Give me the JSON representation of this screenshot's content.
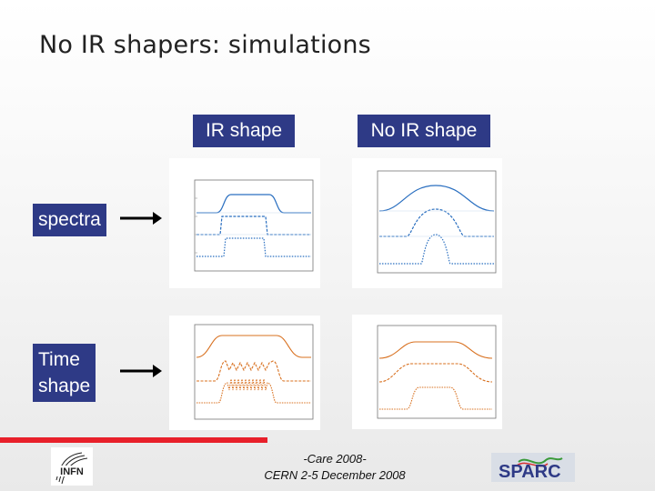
{
  "slide": {
    "title": "No IR shapers: simulations",
    "columns": [
      "IR shape",
      "No IR shape"
    ],
    "rows": [
      "spectra",
      "Time\nshape"
    ],
    "footer": {
      "line1": "-Care 2008-",
      "line2": "CERN 2-5 December 2008"
    },
    "logos": {
      "left": "INFN",
      "right": "SPARC"
    }
  },
  "colors": {
    "header_bg": "#2e3a86",
    "spectra_curve": "#2a6fc0",
    "time_curve": "#d8701f",
    "accent_bar": "#e8202a"
  }
}
